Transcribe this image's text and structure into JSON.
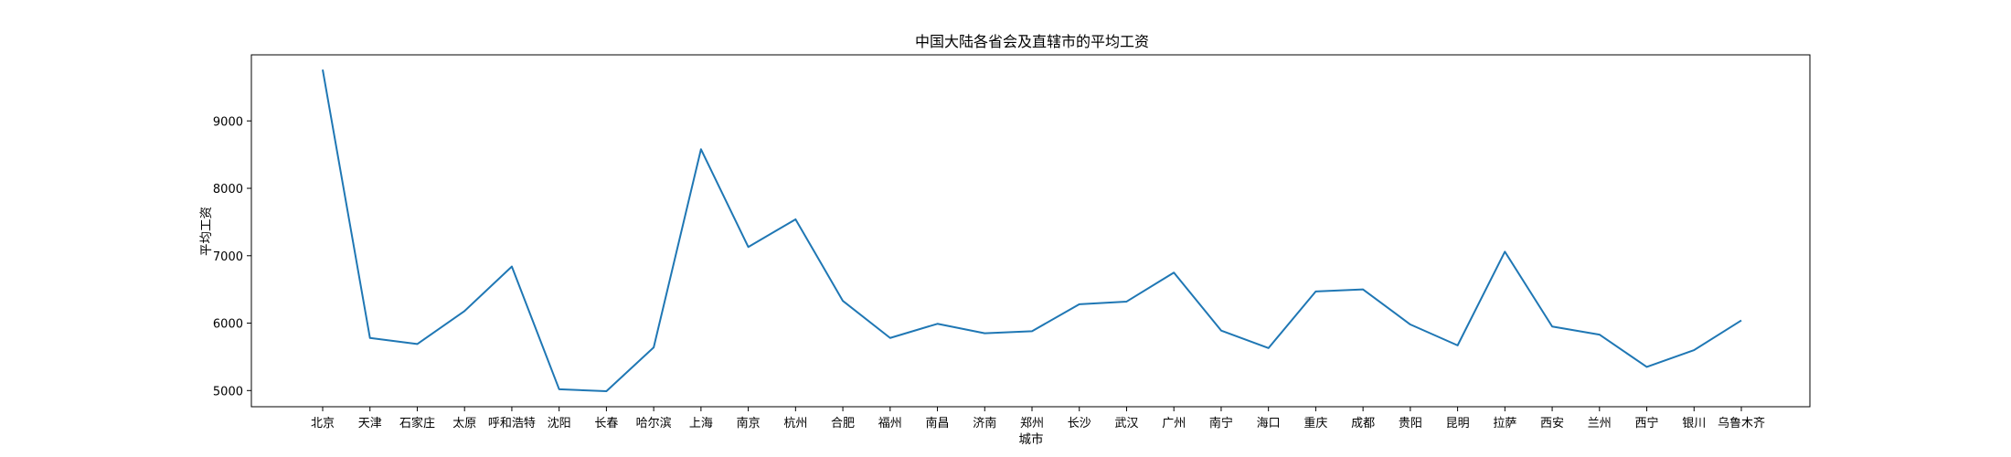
{
  "chart_data": {
    "type": "line",
    "title": "中国大陆各省会及直辖市的平均工资",
    "xlabel": "城市",
    "ylabel": "平均工资",
    "categories": [
      "北京",
      "天津",
      "石家庄",
      "太原",
      "呼和浩特",
      "沈阳",
      "长春",
      "哈尔滨",
      "上海",
      "南京",
      "杭州",
      "合肥",
      "福州",
      "南昌",
      "济南",
      "郑州",
      "长沙",
      "武汉",
      "广州",
      "南宁",
      "海口",
      "重庆",
      "成都",
      "贵阳",
      "昆明",
      "拉萨",
      "西安",
      "兰州",
      "西宁",
      "银川",
      "乌鲁木齐"
    ],
    "values": [
      9760,
      5780,
      5690,
      6180,
      6840,
      5020,
      4990,
      5640,
      8580,
      7130,
      7540,
      6330,
      5780,
      5990,
      5850,
      5880,
      6280,
      6320,
      6750,
      5890,
      5630,
      6470,
      6500,
      5980,
      5670,
      7060,
      5950,
      5830,
      5350,
      5600,
      6040
    ],
    "yticks": [
      5000,
      6000,
      7000,
      8000,
      9000
    ],
    "ylim": [
      4760,
      9980
    ],
    "color": "#1f77b4",
    "grid": false
  }
}
